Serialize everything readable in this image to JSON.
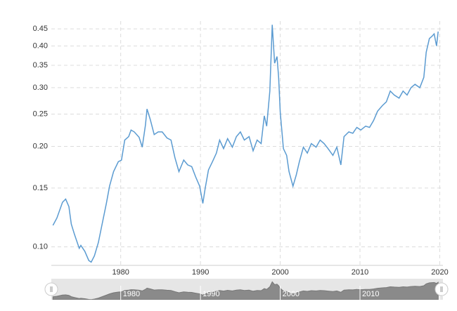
{
  "chart_data": {
    "type": "line",
    "yscale": "log",
    "grid": true,
    "xlim": [
      1971.3,
      2020.4
    ],
    "xticks": [
      1980,
      1990,
      2000,
      2010,
      2020
    ],
    "ylim": [
      0.088,
      0.475
    ],
    "yticks": [
      {
        "value": 0.1,
        "label": "0.10"
      },
      0.15,
      {
        "value": 0.2,
        "label": "0.20"
      },
      0.25,
      {
        "value": 0.3,
        "label": "0.30"
      },
      0.35,
      {
        "value": 0.4,
        "label": "0.40"
      },
      0.45
    ],
    "x": [
      1971.5,
      1972.0,
      1972.7,
      1973.1,
      1973.5,
      1973.8,
      1974.2,
      1974.8,
      1975.0,
      1975.5,
      1976.0,
      1976.3,
      1976.7,
      1977.2,
      1977.7,
      1978.2,
      1978.6,
      1979.1,
      1979.7,
      1980.1,
      1980.5,
      1981.0,
      1981.3,
      1981.7,
      1982.3,
      1982.7,
      1983.1,
      1983.3,
      1983.7,
      1984.2,
      1984.7,
      1985.2,
      1985.8,
      1986.3,
      1986.8,
      1987.3,
      1987.9,
      1988.4,
      1988.9,
      1989.4,
      1989.9,
      1990.3,
      1990.6,
      1991.0,
      1991.5,
      1992.0,
      1992.4,
      1992.9,
      1993.4,
      1994.0,
      1994.5,
      1995.0,
      1995.5,
      1996.1,
      1996.6,
      1997.1,
      1997.6,
      1998.0,
      1998.3,
      1998.7,
      1999.0,
      1999.3,
      1999.6,
      1999.8,
      2000.0,
      2000.2,
      2000.4,
      2000.8,
      2001.1,
      2001.6,
      2002.0,
      2002.4,
      2002.9,
      2003.4,
      2003.9,
      2004.5,
      2005.0,
      2005.5,
      2006.0,
      2006.6,
      2007.1,
      2007.6,
      2008.0,
      2008.6,
      2009.1,
      2009.6,
      2010.1,
      2010.7,
      2011.2,
      2011.7,
      2012.2,
      2012.8,
      2013.3,
      2013.8,
      2014.3,
      2014.9,
      2015.4,
      2015.9,
      2016.4,
      2016.9,
      2017.5,
      2018.0,
      2018.3,
      2018.7,
      2019.0,
      2019.3,
      2019.6,
      2019.8
    ],
    "series": [
      {
        "color": "#5b9bd1",
        "values": [
          0.116,
          0.122,
          0.136,
          0.139,
          0.132,
          0.117,
          0.109,
          0.099,
          0.101,
          0.097,
          0.091,
          0.09,
          0.094,
          0.103,
          0.118,
          0.135,
          0.152,
          0.168,
          0.18,
          0.182,
          0.209,
          0.214,
          0.224,
          0.221,
          0.213,
          0.199,
          0.232,
          0.259,
          0.241,
          0.217,
          0.221,
          0.221,
          0.212,
          0.209,
          0.185,
          0.168,
          0.182,
          0.176,
          0.174,
          0.162,
          0.152,
          0.135,
          0.15,
          0.17,
          0.18,
          0.191,
          0.209,
          0.197,
          0.211,
          0.199,
          0.214,
          0.221,
          0.209,
          0.214,
          0.194,
          0.209,
          0.204,
          0.247,
          0.23,
          0.293,
          0.463,
          0.355,
          0.372,
          0.322,
          0.253,
          0.224,
          0.197,
          0.188,
          0.168,
          0.152,
          0.164,
          0.18,
          0.199,
          0.191,
          0.204,
          0.199,
          0.209,
          0.204,
          0.197,
          0.188,
          0.199,
          0.176,
          0.214,
          0.221,
          0.219,
          0.228,
          0.224,
          0.23,
          0.228,
          0.239,
          0.255,
          0.265,
          0.272,
          0.293,
          0.285,
          0.279,
          0.293,
          0.285,
          0.3,
          0.307,
          0.3,
          0.322,
          0.383,
          0.421,
          0.427,
          0.435,
          0.4,
          0.442
        ]
      }
    ]
  }
}
